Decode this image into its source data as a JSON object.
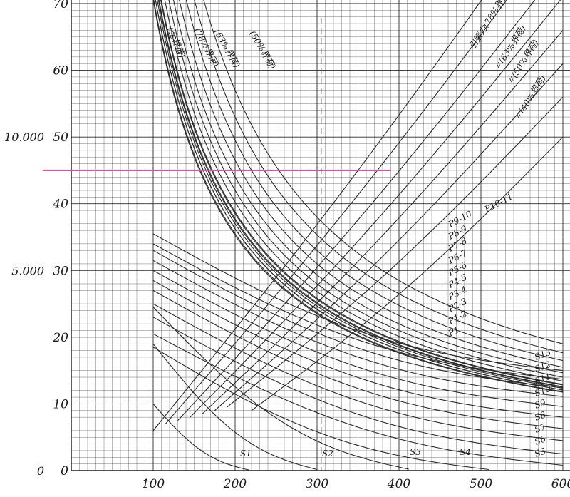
{
  "chart_data": {
    "type": "line",
    "grid": true,
    "xlim": [
      0,
      600
    ],
    "ylim": [
      0,
      70
    ],
    "x_ticks": [
      "100",
      "200",
      "300",
      "400",
      "500",
      "600"
    ],
    "y_ticks_left": [
      "0",
      "10",
      "20",
      "30",
      "40",
      "50",
      "60",
      "70"
    ],
    "y_ticks_outer": [
      "0",
      "5.000",
      "10.000"
    ],
    "y_ticks_outer_values": [
      0,
      30,
      50
    ],
    "reference_line": {
      "y": 45,
      "x_end": 390,
      "color": "#e0509a"
    },
    "dashed_vline": {
      "x": 305
    },
    "upper_series_labels": [
      "(全界荷)",
      "(78%界荷)",
      "(63%界荷)",
      "(50%界荷)"
    ],
    "right_series_labels": [
      "引張力(78%界荷)",
      "〃(63%界荷)",
      "〃(50%界荷)",
      "〃(40%界荷)"
    ],
    "p_labels": [
      "P10-11",
      "P9-10",
      "P8-9",
      "P7-8",
      "P6-7",
      "P5-6",
      "P4-5",
      "P3-4",
      "P2-3",
      "P1-2",
      "P1"
    ],
    "s_labels": [
      "S13",
      "S12",
      "S11",
      "S10",
      "S9",
      "S8",
      "S7",
      "S6",
      "S5"
    ],
    "s_bottom_labels": [
      "S1",
      "S2",
      "S3",
      "S4"
    ],
    "series": [
      {
        "group": "upper",
        "k": 7100
      },
      {
        "group": "upper",
        "k": 7250
      },
      {
        "group": "upper",
        "k": 7400
      },
      {
        "group": "upper",
        "k": 7550
      },
      {
        "group": "upper",
        "k": 7700
      },
      {
        "group": "P",
        "k": 7050
      },
      {
        "group": "P",
        "k": 7250
      },
      {
        "group": "P",
        "k": 7500
      },
      {
        "group": "P",
        "k": 7750
      },
      {
        "group": "P",
        "k": 8050
      },
      {
        "group": "P",
        "k": 8400
      },
      {
        "group": "P",
        "k": 8800
      },
      {
        "group": "P",
        "k": 9300
      },
      {
        "group": "P",
        "k": 9900
      },
      {
        "group": "P",
        "k": 10600
      },
      {
        "group": "P",
        "k": 11400
      },
      {
        "group": "S",
        "x0": 100,
        "y0": 35.5,
        "x1": 600,
        "y1": 15
      },
      {
        "group": "S",
        "x0": 100,
        "y0": 34,
        "x1": 600,
        "y1": 13.7
      },
      {
        "group": "S",
        "x0": 100,
        "y0": 33,
        "x1": 600,
        "y1": 12.4
      },
      {
        "group": "S",
        "x0": 100,
        "y0": 31.5,
        "x1": 600,
        "y1": 11.1
      },
      {
        "group": "S",
        "x0": 100,
        "y0": 30,
        "x1": 600,
        "y1": 9.6
      },
      {
        "group": "S",
        "x0": 100,
        "y0": 28.5,
        "x1": 600,
        "y1": 8
      },
      {
        "group": "S",
        "x0": 100,
        "y0": 27,
        "x1": 600,
        "y1": 6.3
      },
      {
        "group": "S",
        "x0": 100,
        "y0": 25,
        "x1": 600,
        "y1": 4.5
      },
      {
        "group": "S",
        "x0": 100,
        "y0": 23,
        "x1": 600,
        "y1": 2.5
      },
      {
        "group": "S",
        "x0": 100,
        "y0": 20.5,
        "x1": 600,
        "y1": 0.8
      },
      {
        "group": "S",
        "x0": 100,
        "y0": 18.5,
        "x1": 520,
        "y1": 0
      },
      {
        "group": "S",
        "x0": 100,
        "y0": 24.5,
        "x1": 420,
        "y1": 0
      },
      {
        "group": "S",
        "x0": 100,
        "y0": 19,
        "x1": 305,
        "y1": 0
      },
      {
        "group": "S",
        "x0": 100,
        "y0": 10,
        "x1": 220,
        "y1": 0
      },
      {
        "group": "rising",
        "x0": 100,
        "y0": 6,
        "x1": 600,
        "y1": 88
      },
      {
        "group": "rising",
        "x0": 115,
        "y0": 7,
        "x1": 600,
        "y1": 82
      },
      {
        "group": "rising",
        "x0": 130,
        "y0": 7.5,
        "x1": 600,
        "y1": 76
      },
      {
        "group": "rising",
        "x0": 145,
        "y0": 8,
        "x1": 600,
        "y1": 71
      },
      {
        "group": "rising",
        "x0": 160,
        "y0": 8.5,
        "x1": 600,
        "y1": 66
      },
      {
        "group": "rising",
        "x0": 175,
        "y0": 9,
        "x1": 600,
        "y1": 61
      },
      {
        "group": "rising",
        "x0": 190,
        "y0": 9.5,
        "x1": 600,
        "y1": 56
      },
      {
        "group": "rising",
        "x0": 220,
        "y0": 9,
        "x1": 600,
        "y1": 50
      }
    ]
  }
}
